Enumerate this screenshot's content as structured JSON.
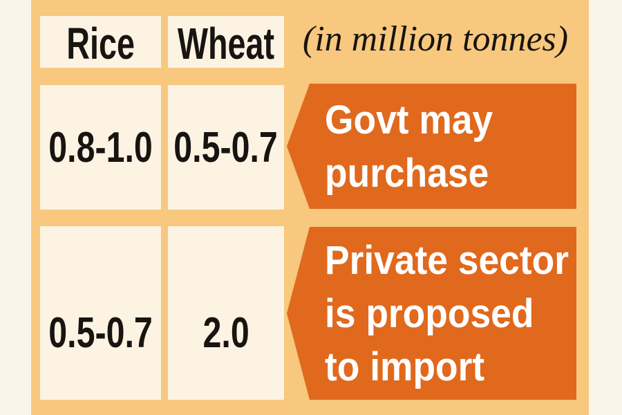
{
  "chart_data": {
    "type": "table",
    "title": "(in million tonnes)",
    "columns": [
      "Rice",
      "Wheat"
    ],
    "rows": [
      {
        "label": "Govt may purchase",
        "rice": "0.8-1.0",
        "wheat": "0.5-0.7"
      },
      {
        "label": "Private sector is proposed to import",
        "rice": "0.5-0.7",
        "wheat": "2.0"
      }
    ],
    "legend_position": "none",
    "grid": false
  },
  "banners": [
    {
      "lines": [
        "Govt may",
        "purchase"
      ]
    },
    {
      "lines": [
        "Private sector",
        "is proposed",
        "to import"
      ]
    }
  ],
  "colors": {
    "page_bg": "#fbf5e9",
    "graphic_bg": "#f7c87e",
    "cell_bg": "#fdf3e3",
    "banner_bg": "#e0691d",
    "text_dark": "#171411",
    "text_light": "#ffffff"
  }
}
